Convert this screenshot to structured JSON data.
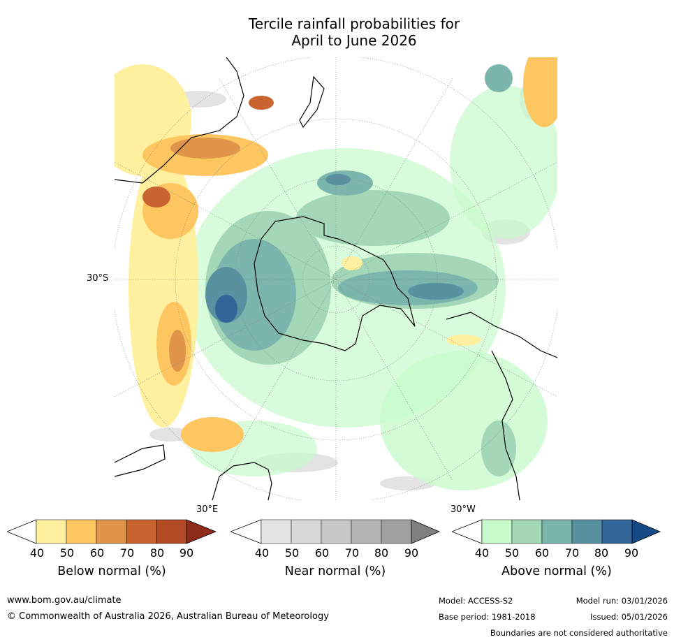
{
  "title": {
    "line1": "Tercile rainfall probabilities for",
    "line2": "April to June 2026"
  },
  "map": {
    "lat_label": "30°S",
    "lon_label_east": "30°E",
    "lon_label_west": "30°W"
  },
  "colorbars": [
    {
      "name": "below",
      "title": "Below normal (%)",
      "ticks": [
        "40",
        "50",
        "60",
        "70",
        "80",
        "90"
      ],
      "colors": [
        "#fff0a0",
        "#fdc661",
        "#e0954a",
        "#c9632f",
        "#b14a25",
        "#8e2b1a"
      ]
    },
    {
      "name": "near",
      "title": "Near normal (%)",
      "ticks": [
        "40",
        "50",
        "60",
        "70",
        "80",
        "90"
      ],
      "colors": [
        "#e5e5e5",
        "#d8d8d8",
        "#c8c8c8",
        "#b4b4b4",
        "#a0a0a0",
        "#808080"
      ]
    },
    {
      "name": "above",
      "title": "Above normal (%)",
      "ticks": [
        "40",
        "50",
        "60",
        "70",
        "80",
        "90"
      ],
      "colors": [
        "#c8fbcc",
        "#a3d7b7",
        "#7cb5ad",
        "#5a91a0",
        "#336598",
        "#164a86"
      ]
    }
  ],
  "footer": {
    "url": "www.bom.gov.au/climate",
    "copyright": "© Commonwealth of Australia 2026, Australian Bureau of Meteorology",
    "model": "Model: ACCESS-S2",
    "base_period": "Base period: 1981-2018",
    "model_run": "Model run: 03/01/2026",
    "issued": "Issued: 05/01/2026",
    "boundaries": "Boundaries are not considered authoritative"
  }
}
